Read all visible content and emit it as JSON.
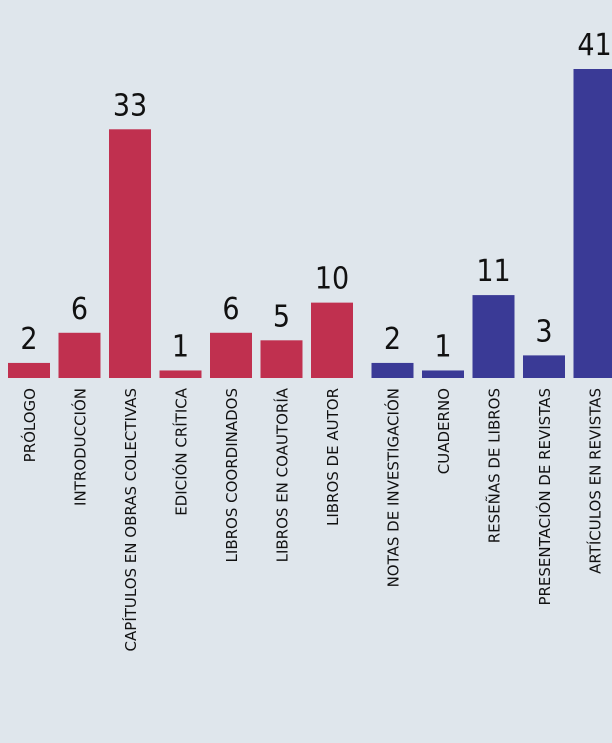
{
  "chart_data": {
    "type": "bar",
    "categories": [
      "PRÓLOGO",
      "INTRODUCCIÓN",
      "CAPÍTULOS EN OBRAS COLECTIVAS",
      "EDICIÓN CRÍTICA",
      "LIBROS COORDINADOS",
      "LIBROS EN COAUTORÍA",
      "LIBROS DE AUTOR",
      "NOTAS DE INVESTIGACIÓN",
      "CUADERNO",
      "RESEÑAS DE LIBROS",
      "PRESENTACIÓN DE REVISTAS",
      "ARTÍCULOS EN REVISTAS"
    ],
    "values": [
      2,
      6,
      33,
      1,
      6,
      5,
      10,
      2,
      1,
      11,
      3,
      41
    ],
    "colors": [
      "#c0304f",
      "#c0304f",
      "#c0304f",
      "#c0304f",
      "#c0304f",
      "#c0304f",
      "#c0304f",
      "#3a3a96",
      "#3a3a96",
      "#3a3a96",
      "#3a3a96",
      "#3a3a96"
    ]
  }
}
